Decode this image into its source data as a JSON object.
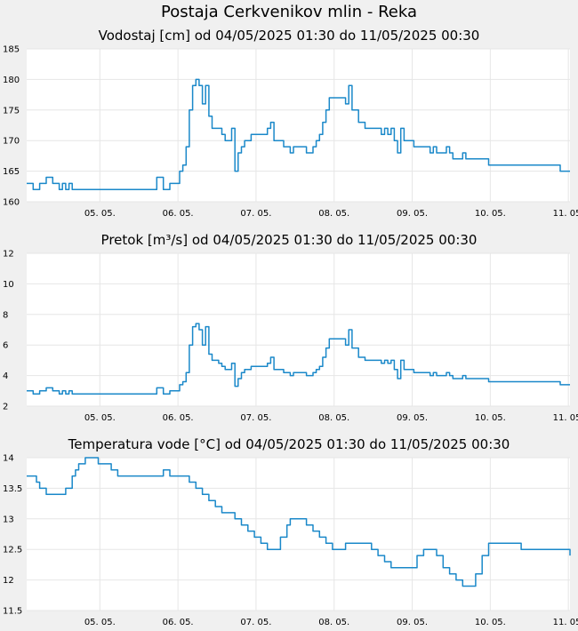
{
  "page": {
    "title": "Postaja Cerkvenikov mlin - Reka"
  },
  "chart_data": [
    {
      "type": "line",
      "title": "Vodostaj [cm] od 04/05/2025 01:30 do 11/05/2025 00:30",
      "xlabel": "",
      "ylabel": "",
      "x_ticks": [
        "05. 05.",
        "06. 05.",
        "07. 05.",
        "08. 05.",
        "09. 05.",
        "10. 05.",
        "11. 05."
      ],
      "xlim": [
        0,
        167
      ],
      "ylim": [
        160,
        185
      ],
      "y_ticks": [
        "160",
        "165",
        "170",
        "175",
        "180",
        "185"
      ],
      "color": "#1a88c9",
      "grid": true,
      "series": [
        {
          "x": [
            0,
            1,
            2,
            3,
            4,
            5,
            6,
            7,
            8,
            9,
            10,
            11,
            12,
            13,
            14,
            15,
            16,
            17,
            18,
            20,
            22,
            26,
            30,
            34,
            38,
            40,
            42,
            43,
            44,
            45,
            46,
            47,
            48,
            49,
            50,
            51,
            52,
            53,
            54,
            55,
            56,
            57,
            58,
            59,
            60,
            61,
            62,
            63,
            64,
            65,
            66,
            67,
            68,
            69,
            70,
            71,
            72,
            73,
            74,
            75,
            76,
            77,
            78,
            79,
            80,
            81,
            82,
            83,
            84,
            85,
            86,
            87,
            88,
            89,
            90,
            91,
            92,
            93,
            94,
            95,
            96,
            97,
            98,
            99,
            100,
            101,
            102,
            103,
            104,
            105,
            106,
            107,
            108,
            109,
            110,
            111,
            112,
            113,
            114,
            115,
            116,
            117,
            118,
            119,
            120,
            121,
            122,
            123,
            124,
            125,
            126,
            127,
            128,
            129,
            130,
            131,
            132,
            133,
            134,
            135,
            136,
            137,
            138,
            140,
            142,
            144,
            146,
            148,
            150,
            152,
            154,
            156,
            158,
            160,
            162,
            164,
            166,
            167
          ],
          "y": [
            163,
            163,
            162,
            162,
            163,
            163,
            164,
            164,
            163,
            163,
            162,
            163,
            162,
            163,
            162,
            162,
            162,
            162,
            162,
            162,
            162,
            162,
            162,
            162,
            162,
            164,
            162,
            162,
            163,
            163,
            163,
            165,
            166,
            169,
            175,
            179,
            180,
            179,
            176,
            179,
            174,
            172,
            172,
            172,
            171,
            170,
            170,
            172,
            165,
            168,
            169,
            170,
            170,
            171,
            171,
            171,
            171,
            171,
            172,
            173,
            170,
            170,
            170,
            169,
            169,
            168,
            169,
            169,
            169,
            169,
            168,
            168,
            169,
            170,
            171,
            173,
            175,
            177,
            177,
            177,
            177,
            177,
            176,
            179,
            175,
            175,
            173,
            173,
            172,
            172,
            172,
            172,
            172,
            171,
            172,
            171,
            172,
            170,
            168,
            172,
            170,
            170,
            170,
            169,
            169,
            169,
            169,
            169,
            168,
            169,
            168,
            168,
            168,
            169,
            168,
            167,
            167,
            167,
            168,
            167,
            167,
            167,
            167,
            167,
            166,
            166,
            166,
            166,
            166,
            166,
            166,
            166,
            166,
            166,
            166,
            165,
            165,
            165
          ],
          "plot": {
            "top": 55,
            "bottom": 227
          }
        }
      ]
    },
    {
      "type": "line",
      "title": "Pretok [m³/s] od 04/05/2025 01:30 do 11/05/2025 00:30",
      "xlabel": "",
      "ylabel": "",
      "x_ticks": [
        "05. 05.",
        "06. 05.",
        "07. 05.",
        "08. 05.",
        "09. 05.",
        "10. 05.",
        "11. 05."
      ],
      "xlim": [
        0,
        167
      ],
      "ylim": [
        2,
        12
      ],
      "y_ticks": [
        "2",
        "4",
        "6",
        "8",
        "10",
        "12"
      ],
      "color": "#1a88c9",
      "grid": true,
      "series": [
        {
          "x": [
            0,
            1,
            2,
            3,
            4,
            5,
            6,
            7,
            8,
            9,
            10,
            11,
            12,
            13,
            14,
            15,
            16,
            17,
            18,
            20,
            22,
            26,
            30,
            34,
            38,
            40,
            42,
            43,
            44,
            45,
            46,
            47,
            48,
            49,
            50,
            51,
            52,
            53,
            54,
            55,
            56,
            57,
            58,
            59,
            60,
            61,
            62,
            63,
            64,
            65,
            66,
            67,
            68,
            69,
            70,
            71,
            72,
            73,
            74,
            75,
            76,
            77,
            78,
            79,
            80,
            81,
            82,
            83,
            84,
            85,
            86,
            87,
            88,
            89,
            90,
            91,
            92,
            93,
            94,
            95,
            96,
            97,
            98,
            99,
            100,
            101,
            102,
            103,
            104,
            105,
            106,
            107,
            108,
            109,
            110,
            111,
            112,
            113,
            114,
            115,
            116,
            117,
            118,
            119,
            120,
            121,
            122,
            123,
            124,
            125,
            126,
            127,
            128,
            129,
            130,
            131,
            132,
            133,
            134,
            135,
            136,
            137,
            138,
            140,
            142,
            144,
            146,
            148,
            150,
            152,
            154,
            156,
            158,
            160,
            162,
            164,
            166,
            167
          ],
          "y": [
            3.0,
            3.0,
            2.8,
            2.8,
            3.0,
            3.0,
            3.2,
            3.2,
            3.0,
            3.0,
            2.8,
            3.0,
            2.8,
            3.0,
            2.8,
            2.8,
            2.8,
            2.8,
            2.8,
            2.8,
            2.8,
            2.8,
            2.8,
            2.8,
            2.8,
            3.2,
            2.8,
            2.8,
            3.0,
            3.0,
            3.0,
            3.4,
            3.6,
            4.2,
            6.0,
            7.2,
            7.4,
            7.0,
            6.0,
            7.2,
            5.4,
            5.0,
            5.0,
            4.8,
            4.6,
            4.4,
            4.4,
            4.8,
            3.3,
            3.8,
            4.2,
            4.4,
            4.4,
            4.6,
            4.6,
            4.6,
            4.6,
            4.6,
            4.8,
            5.2,
            4.4,
            4.4,
            4.4,
            4.2,
            4.2,
            4.0,
            4.2,
            4.2,
            4.2,
            4.2,
            4.0,
            4.0,
            4.2,
            4.4,
            4.6,
            5.2,
            5.8,
            6.4,
            6.4,
            6.4,
            6.4,
            6.4,
            6.0,
            7.0,
            5.8,
            5.8,
            5.2,
            5.2,
            5.0,
            5.0,
            5.0,
            5.0,
            5.0,
            4.8,
            5.0,
            4.8,
            5.0,
            4.4,
            3.8,
            5.0,
            4.4,
            4.4,
            4.4,
            4.2,
            4.2,
            4.2,
            4.2,
            4.2,
            4.0,
            4.2,
            4.0,
            4.0,
            4.0,
            4.2,
            4.0,
            3.8,
            3.8,
            3.8,
            4.0,
            3.8,
            3.8,
            3.8,
            3.8,
            3.8,
            3.6,
            3.6,
            3.6,
            3.6,
            3.6,
            3.6,
            3.6,
            3.6,
            3.6,
            3.6,
            3.6,
            3.4,
            3.4,
            3.4
          ],
          "plot": {
            "top": 285,
            "bottom": 457
          }
        }
      ]
    },
    {
      "type": "line",
      "title": "Temperatura vode [°C] od 04/05/2025 01:30 do 11/05/2025 00:30",
      "xlabel": "",
      "ylabel": "",
      "x_ticks": [
        "05. 05.",
        "06. 05.",
        "07. 05.",
        "08. 05.",
        "09. 05.",
        "10. 05.",
        "11. 05."
      ],
      "xlim": [
        0,
        167
      ],
      "ylim": [
        11.5,
        14
      ],
      "y_ticks": [
        "11.5",
        "12",
        "12.5",
        "13",
        "13.5",
        "14"
      ],
      "color": "#1a88c9",
      "grid": true,
      "series": [
        {
          "x": [
            0,
            2,
            3,
            4,
            5,
            6,
            7,
            8,
            10,
            12,
            14,
            15,
            16,
            17,
            18,
            19,
            20,
            21,
            22,
            24,
            26,
            28,
            30,
            32,
            34,
            36,
            38,
            40,
            42,
            44,
            46,
            48,
            50,
            52,
            54,
            56,
            58,
            60,
            62,
            64,
            66,
            68,
            70,
            72,
            74,
            76,
            78,
            80,
            81,
            82,
            83,
            84,
            85,
            86,
            88,
            90,
            92,
            94,
            96,
            98,
            100,
            102,
            104,
            106,
            108,
            110,
            112,
            114,
            116,
            118,
            120,
            122,
            124,
            126,
            128,
            130,
            132,
            134,
            136,
            138,
            140,
            142,
            144,
            146,
            148,
            150,
            152,
            154,
            156,
            158,
            160,
            162,
            164,
            166,
            167
          ],
          "y": [
            13.7,
            13.7,
            13.6,
            13.5,
            13.5,
            13.4,
            13.4,
            13.4,
            13.4,
            13.5,
            13.7,
            13.8,
            13.9,
            13.9,
            14.0,
            14.0,
            14.0,
            14.0,
            13.9,
            13.9,
            13.8,
            13.7,
            13.7,
            13.7,
            13.7,
            13.7,
            13.7,
            13.7,
            13.8,
            13.7,
            13.7,
            13.7,
            13.6,
            13.5,
            13.4,
            13.3,
            13.2,
            13.1,
            13.1,
            13.0,
            12.9,
            12.8,
            12.7,
            12.6,
            12.5,
            12.5,
            12.7,
            12.9,
            13.0,
            13.0,
            13.0,
            13.0,
            13.0,
            12.9,
            12.8,
            12.7,
            12.6,
            12.5,
            12.5,
            12.6,
            12.6,
            12.6,
            12.6,
            12.5,
            12.4,
            12.3,
            12.2,
            12.2,
            12.2,
            12.2,
            12.4,
            12.5,
            12.5,
            12.4,
            12.2,
            12.1,
            12.0,
            11.9,
            11.9,
            12.1,
            12.4,
            12.6,
            12.6,
            12.6,
            12.6,
            12.6,
            12.5,
            12.5,
            12.5,
            12.5,
            12.5,
            12.5,
            12.5,
            12.5,
            12.4
          ],
          "plot": {
            "top": 515,
            "bottom": 687
          }
        }
      ]
    }
  ]
}
